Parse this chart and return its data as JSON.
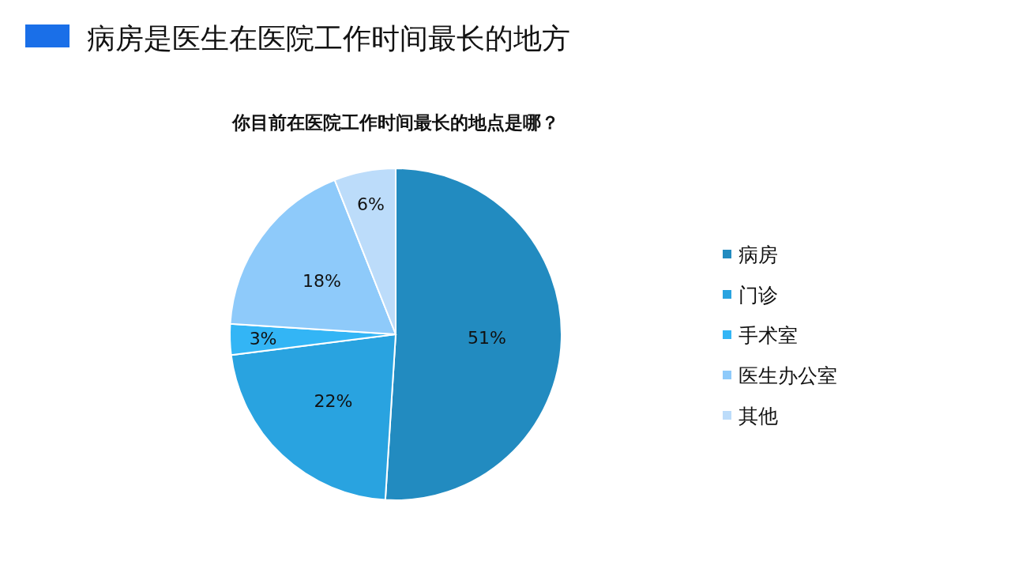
{
  "chart_data": {
    "type": "pie",
    "title": "病房是医生在医院工作时间最长的地方",
    "subtitle": "你目前在医院工作时间最长的地点是哪？",
    "categories": [
      "病房",
      "门诊",
      "手术室",
      "医生办公室",
      "其他"
    ],
    "values": [
      51,
      22,
      3,
      18,
      6
    ],
    "value_labels": [
      "51%",
      "22%",
      "3%",
      "18%",
      "6%"
    ],
    "colors": [
      "#228bc0",
      "#29a3e0",
      "#33b5f5",
      "#8ecafa",
      "#bcdcfa"
    ],
    "legend": "right"
  }
}
